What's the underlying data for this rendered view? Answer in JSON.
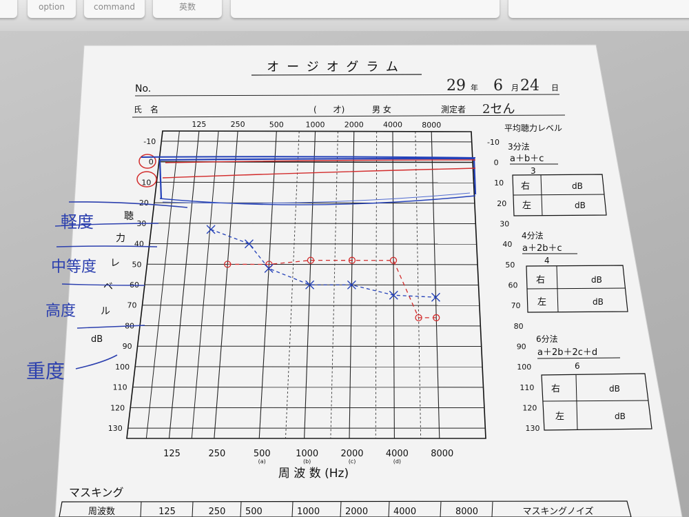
{
  "keyboard": {
    "keys": [
      "",
      "option",
      "command",
      "英数",
      "",
      ""
    ]
  },
  "form": {
    "title": "オージオグラム",
    "no_label": "No.",
    "date": {
      "year_value": "29",
      "year_label": "年",
      "month_value": "6",
      "month_label": "月",
      "day_value": "24",
      "day_label": "日"
    },
    "name_label": "氏　名",
    "age_label": "(　　才)",
    "sex_label": "男 女",
    "examiner_label": "測定者",
    "examiner_value": "2セん",
    "avg_title": "平均聴力レベル"
  },
  "chart_data": {
    "type": "line",
    "title": "",
    "top_axis_ticks": [
      "125",
      "250",
      "500",
      "1000",
      "2000",
      "4000",
      "8000"
    ],
    "bottom_axis_ticks": [
      "125",
      "250",
      "500",
      "1000",
      "2000",
      "4000",
      "8000"
    ],
    "bottom_axis_sublabels": [
      "(a)",
      "(b)",
      "(c)",
      "(d)"
    ],
    "xlabel": "周 波 数 (Hz)",
    "ylabel_chars": [
      "聴",
      "力",
      "レ",
      "ベ",
      "ル",
      "dB"
    ],
    "y_ticks": [
      "-10",
      "0",
      "10",
      "20",
      "30",
      "40",
      "50",
      "60",
      "70",
      "80",
      "90",
      "100",
      "110",
      "120",
      "130"
    ],
    "y_range": [
      -10,
      130
    ],
    "frequency_positions": [
      125,
      250,
      500,
      1000,
      2000,
      4000,
      8000
    ],
    "series": [
      {
        "color": "#d22b2b",
        "marker": "circle",
        "points": [
          [
            250,
            50
          ],
          [
            500,
            50
          ],
          [
            1000,
            48
          ],
          [
            2000,
            48
          ],
          [
            4000,
            48
          ],
          [
            6000,
            76
          ],
          [
            8000,
            76
          ]
        ]
      },
      {
        "color": "#2340b8",
        "marker": "x",
        "points": [
          [
            180,
            33
          ],
          [
            350,
            40
          ],
          [
            500,
            52
          ],
          [
            1000,
            60
          ],
          [
            2000,
            60
          ],
          [
            4000,
            65
          ],
          [
            8000,
            66
          ]
        ]
      }
    ]
  },
  "annotations": {
    "mild": "軽度",
    "moderate": "中等度",
    "severe": "高度",
    "profound": "重度",
    "circled_zero": "0",
    "circled_ten": "10"
  },
  "avg_methods": [
    {
      "name": "3分法",
      "formula": "a＋b＋c",
      "denominator": "3",
      "right_label": "右",
      "left_label": "左",
      "unit": "dB"
    },
    {
      "name": "4分法",
      "formula": "a＋2b＋c",
      "denominator": "4",
      "right_label": "右",
      "left_label": "左",
      "unit": "dB"
    },
    {
      "name": "6分法",
      "formula": "a＋2b＋2c＋d",
      "denominator": "6",
      "right_label": "右",
      "left_label": "左",
      "unit": "dB"
    }
  ],
  "masking": {
    "title": "マスキング",
    "header": [
      "周波数",
      "125",
      "250",
      "500",
      "1000",
      "2000",
      "4000",
      "8000",
      "マスキングノイズ"
    ]
  }
}
